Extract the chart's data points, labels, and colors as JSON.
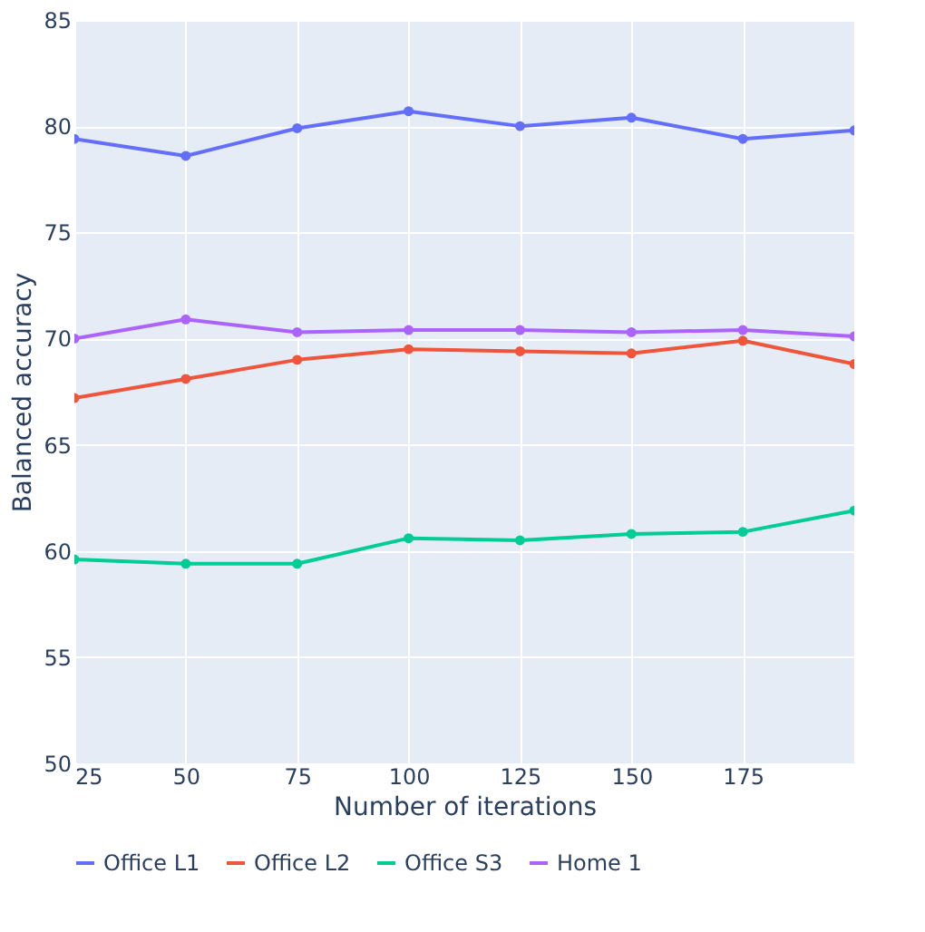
{
  "chart_data": {
    "type": "line",
    "xlabel": "Number of iterations",
    "ylabel": "Balanced accuracy",
    "x": [
      25,
      50,
      75,
      100,
      125,
      150,
      175,
      200
    ],
    "xlim": [
      25,
      200
    ],
    "xticks": [
      25,
      50,
      75,
      100,
      125,
      150,
      175
    ],
    "ylim": [
      50,
      85
    ],
    "yticks": [
      50,
      55,
      60,
      65,
      70,
      75,
      80,
      85
    ],
    "grid": true,
    "legend": "bottom",
    "marker": "circle",
    "line_style": "solid",
    "series": [
      {
        "name": "Office L1",
        "color": "#636efa",
        "values": [
          79.4,
          78.6,
          79.9,
          80.7,
          80.0,
          80.4,
          79.4,
          79.8
        ]
      },
      {
        "name": "Office L2",
        "color": "#ef553b",
        "values": [
          67.2,
          68.1,
          69.0,
          69.5,
          69.4,
          69.3,
          69.9,
          68.8
        ]
      },
      {
        "name": "Office S3",
        "color": "#00cc96",
        "values": [
          59.6,
          59.4,
          59.4,
          60.6,
          60.5,
          60.8,
          60.9,
          61.9
        ]
      },
      {
        "name": "Home 1",
        "color": "#ab63fa",
        "values": [
          70.0,
          70.9,
          70.3,
          70.4,
          70.4,
          70.3,
          70.4,
          70.1
        ]
      }
    ]
  }
}
